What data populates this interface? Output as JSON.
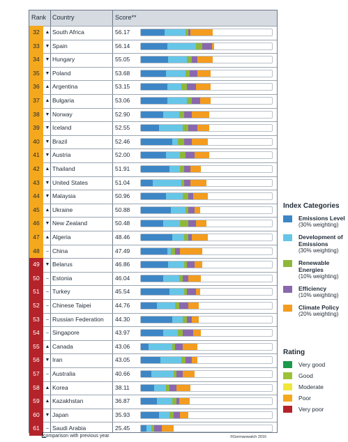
{
  "header": {
    "rank": "Rank",
    "country": "Country",
    "score": "Score**"
  },
  "colors": {
    "emissions": "#3d86c6",
    "development": "#66c6e8",
    "renewable": "#8fb83a",
    "efficiency": "#8a68ad",
    "climate": "#f39c1f",
    "rating": {
      "very_good": "#1a9a4a",
      "good": "#9cc23a",
      "moderate": "#f1e63a",
      "poor": "#f4a81d",
      "very_poor": "#b5232a"
    }
  },
  "legend": {
    "title": "Index Categories",
    "items": [
      {
        "key": "emissions",
        "name": "Emissions Level",
        "weight": "(30% weighting)"
      },
      {
        "key": "development",
        "name": "Development of Emissions",
        "weight": "(30% weighting)"
      },
      {
        "key": "renewable",
        "name": "Renewable Energies",
        "weight": "(10% weighting)"
      },
      {
        "key": "efficiency",
        "name": "Efficiency",
        "weight": "(10% weighting)"
      },
      {
        "key": "climate",
        "name": "Climate Policy",
        "weight": "(20% weighting)"
      }
    ]
  },
  "rating": {
    "title": "Rating",
    "items": [
      {
        "key": "very_good",
        "label": "Very good"
      },
      {
        "key": "good",
        "label": "Good"
      },
      {
        "key": "moderate",
        "label": "Moderate"
      },
      {
        "key": "poor",
        "label": "Poor"
      },
      {
        "key": "very_poor",
        "label": "Very poor"
      }
    ]
  },
  "footer": {
    "comparison": "comparison with previous year",
    "credit": "©Germanwatch 2016"
  },
  "chart_data": {
    "type": "bar",
    "stacked": true,
    "xlim": [
      0,
      100
    ],
    "categories": [
      "South Africa",
      "Spain",
      "Hungary",
      "Poland",
      "Argentina",
      "Bulgaria",
      "Norway",
      "Iceland",
      "Brazil",
      "Austria",
      "Thailand",
      "United States",
      "Malaysia",
      "Ukraine",
      "New Zealand",
      "Algeria",
      "China",
      "Belarus",
      "Estonia",
      "Turkey",
      "Chinese Taipei",
      "Russian Federation",
      "Singapore",
      "Canada",
      "Iran",
      "Australia",
      "Korea",
      "Kazakhstan",
      "Japan",
      "Saudi Arabia"
    ],
    "ranks": [
      "32",
      "33",
      "34",
      "35",
      "36",
      "37",
      "38",
      "39",
      "40",
      "41",
      "42",
      "43",
      "44",
      "45",
      "46",
      "47",
      "48",
      "49",
      "50",
      "51",
      "52",
      "53",
      "54",
      "55",
      "56",
      "57",
      "58",
      "59",
      "60",
      "61"
    ],
    "trend": [
      "▲",
      "▼",
      "▼",
      "▼",
      "▲",
      "▲",
      "▼",
      "▼",
      "▼",
      "▼",
      "▲",
      "▼",
      "▼",
      "▲",
      "▼",
      "▲",
      "–",
      "▼",
      "–",
      "–",
      "–",
      "–",
      "–",
      "▲",
      "▼",
      "–",
      "▲",
      "▲",
      "▼",
      "–"
    ],
    "scores": [
      "56.17",
      "56.14",
      "55.05",
      "53.68",
      "53.15",
      "53.06",
      "52.90",
      "52.55",
      "52.46",
      "52.00",
      "51.91",
      "51.04",
      "50.96",
      "50.88",
      "50.48",
      "48.46",
      "47.49",
      "46.86",
      "46.04",
      "45.54",
      "44.76",
      "44.30",
      "43.97",
      "43.06",
      "43.05",
      "40.66",
      "38.11",
      "36.87",
      "35.93",
      "25.45"
    ],
    "rating": [
      "poor",
      "poor",
      "poor",
      "poor",
      "poor",
      "poor",
      "poor",
      "poor",
      "poor",
      "poor",
      "poor",
      "poor",
      "poor",
      "poor",
      "poor",
      "poor",
      "poor",
      "very_poor",
      "very_poor",
      "very_poor",
      "very_poor",
      "very_poor",
      "very_poor",
      "very_poor",
      "very_poor",
      "very_poor",
      "very_poor",
      "very_poor",
      "very_poor",
      "very_poor"
    ],
    "series": [
      {
        "key": "emissions",
        "values": [
          18.0,
          20.0,
          21.0,
          19.0,
          20.0,
          20.0,
          17.0,
          14.0,
          24.0,
          19.0,
          22.0,
          9.0,
          19.0,
          23.0,
          17.0,
          24.0,
          20.0,
          21.0,
          17.0,
          22.0,
          12.0,
          24.0,
          17.0,
          6.0,
          15.0,
          8.0,
          10.0,
          12.0,
          14.0,
          4.0
        ]
      },
      {
        "key": "development",
        "values": [
          16.0,
          22.0,
          14.0,
          15.0,
          11.0,
          15.0,
          12.0,
          18.0,
          4.0,
          11.0,
          8.0,
          22.0,
          13.0,
          11.0,
          13.0,
          9.0,
          3.0,
          12.0,
          12.0,
          11.0,
          14.0,
          8.0,
          11.0,
          18.0,
          16.0,
          17.0,
          9.0,
          12.0,
          8.0,
          4.0
        ]
      },
      {
        "key": "renewable",
        "values": [
          2.0,
          5.0,
          4.0,
          3.0,
          4.0,
          4.0,
          4.0,
          4.0,
          5.0,
          4.0,
          3.0,
          2.0,
          4.0,
          2.0,
          6.0,
          3.0,
          3.0,
          2.0,
          3.0,
          2.0,
          3.0,
          3.0,
          4.0,
          2.0,
          3.0,
          2.0,
          3.0,
          3.0,
          3.0,
          2.0
        ]
      },
      {
        "key": "efficiency",
        "values": [
          2.0,
          7.0,
          4.0,
          6.0,
          7.0,
          6.0,
          6.0,
          7.0,
          6.0,
          7.0,
          5.0,
          5.0,
          4.0,
          5.0,
          6.0,
          3.0,
          4.0,
          6.0,
          4.0,
          7.0,
          7.0,
          4.0,
          8.0,
          6.0,
          5.0,
          5.0,
          5.0,
          2.0,
          5.0,
          6.0
        ]
      },
      {
        "key": "climate",
        "values": [
          17.0,
          2.0,
          12.0,
          10.0,
          11.0,
          8.0,
          13.0,
          9.0,
          12.0,
          11.0,
          8.0,
          12.0,
          11.0,
          4.0,
          8.0,
          12.0,
          17.0,
          6.0,
          10.0,
          3.0,
          8.0,
          5.0,
          6.0,
          11.0,
          4.0,
          9.0,
          11.0,
          8.0,
          6.0,
          9.0
        ]
      }
    ]
  }
}
